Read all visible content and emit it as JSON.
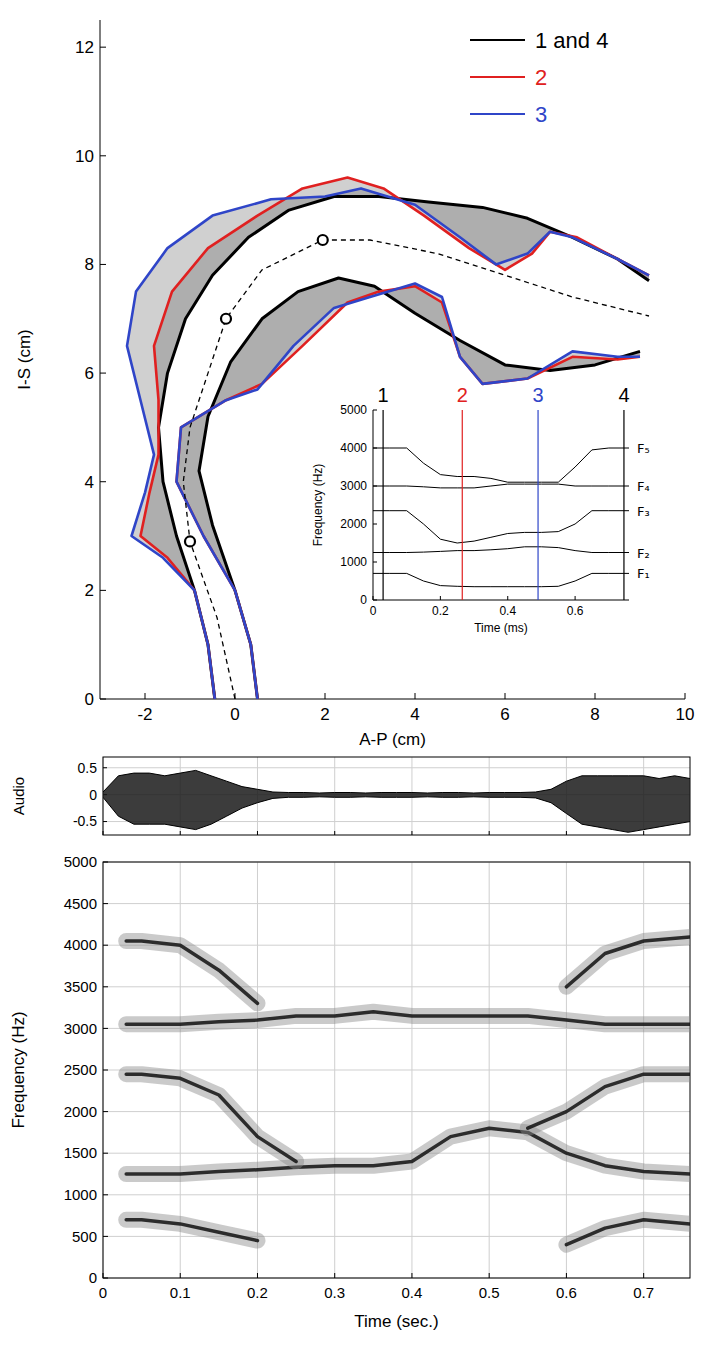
{
  "chart_data": [
    {
      "type": "line",
      "xlabel": "A-P (cm)",
      "ylabel": "I-S (cm)",
      "xlim": [
        -3,
        10
      ],
      "ylim": [
        0,
        12.5
      ],
      "xticks": [
        -2,
        0,
        2,
        4,
        6,
        8,
        10
      ],
      "yticks": [
        0,
        2,
        4,
        6,
        8,
        10,
        12
      ],
      "legend": "upper right",
      "series": [
        {
          "name": "1 and 4",
          "color": "#000000",
          "x": [
            -0.45,
            -0.6,
            -0.9,
            -1.3,
            -1.6,
            -1.7,
            -1.5,
            -1.1,
            -0.5,
            0.3,
            1.2,
            2.2,
            3.2,
            4.3,
            5.5,
            6.5,
            7.5,
            8.5,
            9.2,
            null,
            0.5,
            0.35,
            0,
            -0.5,
            -0.8,
            -0.6,
            -0.1,
            0.6,
            1.4,
            2.3,
            3.1,
            4,
            5,
            6,
            7,
            8,
            9
          ],
          "values": [
            0,
            1,
            2,
            3,
            4,
            5,
            6,
            7,
            7.8,
            8.5,
            9.0,
            9.25,
            9.25,
            9.15,
            9.05,
            8.85,
            8.5,
            8.1,
            7.7,
            null,
            0,
            1,
            2,
            3.2,
            4.2,
            5.2,
            6.2,
            7,
            7.5,
            7.75,
            7.6,
            7.1,
            6.6,
            6.15,
            6.05,
            6.15,
            6.4
          ]
        },
        {
          "name": "2",
          "color": "#e02020",
          "x": [
            -0.45,
            -0.6,
            -0.9,
            -1.5,
            -2.1,
            -1.9,
            -1.7,
            -1.7,
            -1.8,
            -1.4,
            -0.6,
            0.5,
            1.5,
            2.5,
            3.3,
            4.2,
            5.2,
            6,
            6.6,
            7,
            7.6,
            8.5,
            9.2,
            null,
            0.5,
            0.35,
            0,
            -0.7,
            -1.3,
            -1.2,
            -0.2,
            0.6,
            1.5,
            2.5,
            3.2,
            4,
            4.6,
            5,
            5.5,
            6.5,
            7.5,
            8.5,
            9
          ],
          "values": [
            0,
            1,
            2,
            2.6,
            3,
            3.8,
            4.5,
            5.5,
            6.5,
            7.5,
            8.3,
            8.9,
            9.4,
            9.6,
            9.4,
            8.9,
            8.3,
            7.9,
            8.2,
            8.6,
            8.5,
            8.1,
            7.8,
            null,
            0,
            1,
            2,
            3,
            4,
            5,
            5.5,
            5.8,
            6.5,
            7.3,
            7.5,
            7.6,
            7.3,
            6.3,
            5.8,
            5.9,
            6.3,
            6.25,
            6.3
          ]
        },
        {
          "name": "3",
          "color": "#2f45c8",
          "x": [
            -0.45,
            -0.6,
            -0.9,
            -1.6,
            -2.3,
            -2.0,
            -1.8,
            -2.1,
            -2.4,
            -2.2,
            -1.5,
            -0.5,
            0.8,
            2,
            2.8,
            4,
            5,
            5.8,
            6.5,
            7,
            7.5,
            8.5,
            9.2,
            null,
            0.5,
            0.35,
            0,
            -0.7,
            -1.3,
            -1.2,
            -0.2,
            0.5,
            1.3,
            2.2,
            3,
            4,
            4.6,
            5,
            5.5,
            6.5,
            7.5,
            8.5,
            9
          ],
          "values": [
            0,
            1,
            2,
            2.6,
            3,
            3.8,
            4.5,
            5.5,
            6.5,
            7.5,
            8.3,
            8.9,
            9.2,
            9.25,
            9.4,
            9.1,
            8.5,
            8.0,
            8.2,
            8.6,
            8.5,
            8.1,
            7.8,
            null,
            0,
            1,
            2,
            3,
            4,
            5,
            5.5,
            5.7,
            6.5,
            7.2,
            7.4,
            7.65,
            7.4,
            6.3,
            5.8,
            5.9,
            6.4,
            6.3,
            6.3
          ]
        },
        {
          "color": "#000000",
          "line_style": "dashed",
          "x": [
            0,
            -0.4,
            -1,
            -1.15,
            -1.0,
            -0.6,
            -0.2,
            0.6,
            1.95,
            3,
            4.5,
            6,
            7.5,
            9.2
          ],
          "values": [
            0,
            1.5,
            2.9,
            4,
            5,
            6,
            7,
            7.9,
            8.45,
            8.45,
            8.2,
            7.8,
            7.4,
            7.05
          ]
        },
        {
          "type": "scatter",
          "marker": "circle",
          "color": "#000000",
          "x": [
            -1,
            -0.2,
            1.95
          ],
          "values": [
            2.9,
            7.0,
            8.45
          ]
        }
      ]
    },
    {
      "type": "line",
      "xlabel": "Time (ms)",
      "ylabel": "Frequency (Hz)",
      "xlim": [
        0,
        0.76
      ],
      "ylim": [
        0,
        5000
      ],
      "xticks": [
        0,
        0.2,
        0.4,
        0.6
      ],
      "yticks": [
        0,
        1000,
        2000,
        3000,
        4000,
        5000
      ],
      "x": [
        0,
        0.05,
        0.1,
        0.15,
        0.2,
        0.25,
        0.3,
        0.35,
        0.4,
        0.45,
        0.5,
        0.55,
        0.6,
        0.65,
        0.7,
        0.76
      ],
      "series": [
        {
          "name": "F₁",
          "color": "#000000",
          "values": [
            700,
            700,
            700,
            500,
            380,
            360,
            350,
            350,
            350,
            350,
            350,
            360,
            500,
            700,
            700,
            700
          ]
        },
        {
          "name": "F₂",
          "color": "#000000",
          "values": [
            1250,
            1250,
            1250,
            1260,
            1280,
            1300,
            1300,
            1320,
            1350,
            1400,
            1400,
            1380,
            1300,
            1250,
            1250,
            1250
          ]
        },
        {
          "name": "F₃",
          "color": "#000000",
          "values": [
            2350,
            2350,
            2350,
            2000,
            1600,
            1500,
            1550,
            1650,
            1750,
            1780,
            1780,
            1800,
            2000,
            2350,
            2350,
            2350
          ]
        },
        {
          "name": "F₄",
          "color": "#000000",
          "values": [
            3000,
            3000,
            3000,
            2980,
            2950,
            2950,
            2950,
            3000,
            3050,
            3050,
            3050,
            3050,
            3000,
            3000,
            3000,
            3000
          ]
        },
        {
          "name": "F₅",
          "color": "#000000",
          "values": [
            4000,
            4000,
            4000,
            3600,
            3300,
            3250,
            3250,
            3200,
            3100,
            3100,
            3100,
            3100,
            3500,
            3950,
            4000,
            4000
          ]
        }
      ],
      "events": [
        {
          "label": "1",
          "x": 0.03,
          "color": "#000000"
        },
        {
          "label": "2",
          "x": 0.265,
          "color": "#e02020"
        },
        {
          "label": "3",
          "x": 0.49,
          "color": "#2f45c8"
        },
        {
          "label": "4",
          "x": 0.745,
          "color": "#000000"
        }
      ]
    },
    {
      "type": "area",
      "ylabel": "Audio",
      "xlim": [
        0,
        0.76
      ],
      "ylim": [
        -0.75,
        0.7
      ],
      "xticks": [
        0,
        0.1,
        0.2,
        0.3,
        0.4,
        0.5,
        0.6,
        0.7
      ],
      "yticks": [
        -0.5,
        0,
        0.5
      ],
      "tick_labels": "y",
      "grid": true,
      "x": [
        0,
        0.02,
        0.04,
        0.06,
        0.08,
        0.1,
        0.12,
        0.14,
        0.16,
        0.18,
        0.2,
        0.22,
        0.24,
        0.26,
        0.28,
        0.3,
        0.32,
        0.34,
        0.36,
        0.38,
        0.4,
        0.42,
        0.44,
        0.46,
        0.48,
        0.5,
        0.52,
        0.54,
        0.56,
        0.58,
        0.6,
        0.62,
        0.64,
        0.66,
        0.68,
        0.7,
        0.72,
        0.74,
        0.76
      ],
      "series": [
        {
          "color": "#000000",
          "values": [
            0.05,
            0.35,
            0.4,
            0.4,
            0.35,
            0.4,
            0.45,
            0.35,
            0.25,
            0.15,
            0.1,
            0.05,
            0.04,
            0.04,
            0.03,
            0.04,
            0.04,
            0.03,
            0.04,
            0.04,
            0.04,
            0.03,
            0.04,
            0.04,
            0.03,
            0.04,
            0.04,
            0.04,
            0.05,
            0.1,
            0.25,
            0.35,
            0.35,
            0.35,
            0.35,
            0.35,
            0.3,
            0.35,
            0.3
          ]
        },
        {
          "color": "#000000",
          "values": [
            -0.05,
            -0.4,
            -0.55,
            -0.55,
            -0.55,
            -0.6,
            -0.65,
            -0.55,
            -0.4,
            -0.25,
            -0.15,
            -0.07,
            -0.05,
            -0.05,
            -0.04,
            -0.05,
            -0.05,
            -0.04,
            -0.05,
            -0.05,
            -0.05,
            -0.04,
            -0.05,
            -0.05,
            -0.04,
            -0.05,
            -0.05,
            -0.05,
            -0.06,
            -0.15,
            -0.35,
            -0.55,
            -0.6,
            -0.65,
            -0.7,
            -0.65,
            -0.6,
            -0.55,
            -0.5
          ]
        }
      ]
    },
    {
      "type": "spectrogram",
      "xlabel": "Time (sec.)",
      "ylabel": "Frequency (Hz)",
      "xlim": [
        0,
        0.76
      ],
      "ylim": [
        0,
        5000
      ],
      "xticks": [
        0,
        0.1,
        0.2,
        0.3,
        0.4,
        0.5,
        0.6,
        0.7
      ],
      "yticks": [
        0,
        500,
        1000,
        1500,
        2000,
        2500,
        3000,
        3500,
        4000,
        4500,
        5000
      ],
      "grid": true,
      "x": [
        0.03,
        0.05,
        0.1,
        0.15,
        0.2,
        0.25,
        0.3,
        0.35,
        0.4,
        0.45,
        0.5,
        0.55,
        0.6,
        0.65,
        0.7,
        0.76
      ],
      "series": [
        {
          "color": "#111111",
          "values": [
            700,
            700,
            650,
            550,
            450,
            null,
            null,
            null,
            null,
            null,
            null,
            null,
            400,
            600,
            700,
            650
          ]
        },
        {
          "color": "#111111",
          "values": [
            1250,
            1250,
            1250,
            1280,
            1300,
            1330,
            1350,
            1350,
            1400,
            1700,
            1800,
            1750,
            1500,
            1350,
            1280,
            1250
          ]
        },
        {
          "color": "#111111",
          "values": [
            2450,
            2450,
            2400,
            2200,
            1700,
            1400,
            null,
            null,
            null,
            null,
            null,
            1800,
            2000,
            2300,
            2450,
            2450
          ]
        },
        {
          "color": "#111111",
          "values": [
            3050,
            3050,
            3050,
            3080,
            3100,
            3150,
            3150,
            3200,
            3150,
            3150,
            3150,
            3150,
            3100,
            3050,
            3050,
            3050
          ]
        },
        {
          "color": "#111111",
          "values": [
            4050,
            4050,
            4000,
            3700,
            3300,
            null,
            null,
            null,
            null,
            null,
            null,
            null,
            3500,
            3900,
            4050,
            4100
          ]
        }
      ]
    }
  ]
}
